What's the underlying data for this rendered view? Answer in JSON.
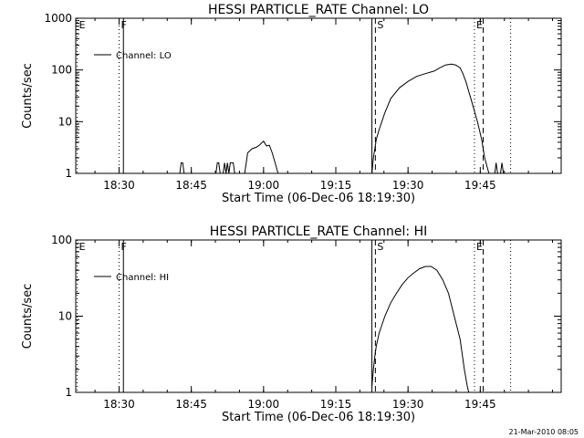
{
  "footer_date": "21-Mar-2010 08:05",
  "chart_data": [
    {
      "type": "line",
      "title": "HESSI PARTICLE_RATE Channel: LO",
      "xlabel": "Start Time (06-Dec-06 18:19:30)",
      "ylabel": "Counts/sec",
      "yscale": "log",
      "xlim": [
        18.35,
        20.03
      ],
      "ylim": [
        1,
        1000
      ],
      "xticks": [
        "18:30",
        "18:45",
        "19:00",
        "19:15",
        "19:30",
        "19:45"
      ],
      "yticks": [
        "1",
        "10",
        "100",
        "1000"
      ],
      "legend": {
        "label": "Channel: LO",
        "placement": "top-left"
      },
      "markers": [
        {
          "label": "E",
          "x": 18.355,
          "style": "dotted"
        },
        {
          "label": "F",
          "x": 18.5,
          "style": "dotted"
        },
        {
          "label": "",
          "x": 18.515,
          "style": "solid"
        },
        {
          "label": "",
          "x": 19.375,
          "style": "solid"
        },
        {
          "label": "S",
          "x": 19.387,
          "style": "dashed"
        },
        {
          "label": "E",
          "x": 19.73,
          "style": "dotted"
        },
        {
          "label": "",
          "x": 19.76,
          "style": "dashed"
        },
        {
          "label": "",
          "x": 19.855,
          "style": "dotted"
        }
      ],
      "series": [
        {
          "segments": [
            {
              "x": [
                18.71,
                18.715,
                18.72,
                18.725
              ],
              "y": [
                1,
                1.6,
                1.6,
                1
              ]
            },
            {
              "x": [
                18.835,
                18.84,
                18.845,
                18.85
              ],
              "y": [
                1,
                1.6,
                1.6,
                1
              ]
            },
            {
              "x": [
                18.86,
                18.865,
                18.87,
                18.875,
                18.88,
                18.885,
                18.89,
                18.895,
                18.9
              ],
              "y": [
                1,
                1.6,
                1,
                1.6,
                1,
                1.6,
                1.6,
                1.6,
                1
              ]
            },
            {
              "x": [
                18.935,
                18.945,
                18.96,
                18.975,
                18.985,
                19.0,
                19.01,
                19.02,
                19.03,
                19.04,
                19.05
              ],
              "y": [
                1,
                2.5,
                3.0,
                3.2,
                3.5,
                4.2,
                3.4,
                3.5,
                2.5,
                1.6,
                1
              ]
            },
            {
              "x": [
                19.375,
                19.38,
                19.385,
                19.39,
                19.4,
                19.42,
                19.44,
                19.47,
                19.5,
                19.53,
                19.56,
                19.59,
                19.61,
                19.63,
                19.65,
                19.665,
                19.68,
                19.69,
                19.7,
                19.72,
                19.74,
                19.755,
                19.765,
                19.78
              ],
              "y": [
                1,
                2,
                3,
                4.5,
                7,
                15,
                28,
                45,
                60,
                75,
                85,
                95,
                110,
                125,
                130,
                125,
                110,
                85,
                60,
                25,
                10,
                4.5,
                2,
                1
              ]
            },
            {
              "x": [
                19.8,
                19.805,
                19.81
              ],
              "y": [
                1,
                1.6,
                1
              ]
            },
            {
              "x": [
                19.82,
                19.825,
                19.83
              ],
              "y": [
                1,
                1.6,
                1
              ]
            }
          ]
        }
      ]
    },
    {
      "type": "line",
      "title": "HESSI PARTICLE_RATE Channel: HI",
      "xlabel": "Start Time (06-Dec-06 18:19:30)",
      "ylabel": "Counts/sec",
      "yscale": "log",
      "xlim": [
        18.35,
        20.03
      ],
      "ylim": [
        1,
        100
      ],
      "xticks": [
        "18:30",
        "18:45",
        "19:00",
        "19:15",
        "19:30",
        "19:45"
      ],
      "yticks": [
        "1",
        "10",
        "100"
      ],
      "legend": {
        "label": "Channel: HI",
        "placement": "top-left"
      },
      "markers": [
        {
          "label": "E",
          "x": 18.355,
          "style": "dotted"
        },
        {
          "label": "F",
          "x": 18.5,
          "style": "dotted"
        },
        {
          "label": "",
          "x": 18.515,
          "style": "solid"
        },
        {
          "label": "",
          "x": 19.375,
          "style": "solid"
        },
        {
          "label": "S",
          "x": 19.387,
          "style": "dashed"
        },
        {
          "label": "E",
          "x": 19.73,
          "style": "dotted"
        },
        {
          "label": "",
          "x": 19.76,
          "style": "dashed"
        },
        {
          "label": "",
          "x": 19.855,
          "style": "dotted"
        }
      ],
      "series": [
        {
          "segments": [
            {
              "x": [
                19.375,
                19.38,
                19.385,
                19.39,
                19.4,
                19.42,
                19.44,
                19.46,
                19.48,
                19.5,
                19.52,
                19.54,
                19.56,
                19.58,
                19.6,
                19.62,
                19.64,
                19.66,
                19.68,
                19.695,
                19.705,
                19.71
              ],
              "y": [
                1.2,
                2,
                3,
                4,
                6,
                10,
                15,
                20,
                26,
                32,
                37,
                42,
                45,
                45,
                40,
                30,
                20,
                10,
                5,
                2,
                1.2,
                1
              ]
            }
          ]
        }
      ]
    }
  ]
}
